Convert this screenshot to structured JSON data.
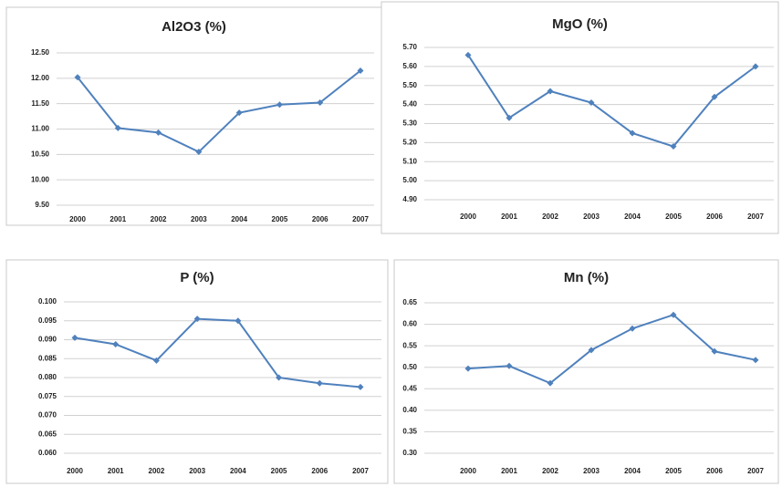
{
  "chart_data": [
    {
      "type": "line",
      "title": "Al2O3 (%)",
      "categories": [
        "2000",
        "2001",
        "2002",
        "2003",
        "2004",
        "2005",
        "2006",
        "2007"
      ],
      "series": [
        {
          "color": "#4f81bd",
          "values": [
            12.02,
            11.02,
            10.93,
            10.55,
            11.32,
            11.48,
            11.52,
            12.15
          ]
        }
      ],
      "ylim": [
        9.5,
        12.5
      ],
      "yticks": [
        {
          "value": 9.5,
          "label": "9.50"
        },
        {
          "value": 10,
          "label": "10.00"
        },
        {
          "value": 10.5,
          "label": "10.50"
        },
        {
          "value": 11,
          "label": "11.00"
        },
        {
          "value": 11.5,
          "label": "11.50"
        },
        {
          "value": 12,
          "label": "12.00"
        },
        {
          "value": 12.5,
          "label": "12.50"
        }
      ],
      "grid": true
    },
    {
      "type": "line",
      "title": "MgO (%)",
      "categories": [
        "2000",
        "2001",
        "2002",
        "2003",
        "2004",
        "2005",
        "2006",
        "2007"
      ],
      "series": [
        {
          "color": "#4f81bd",
          "values": [
            5.66,
            5.33,
            5.47,
            5.41,
            5.25,
            5.18,
            5.44,
            5.6
          ]
        }
      ],
      "ylim": [
        4.9,
        5.7
      ],
      "yticks": [
        {
          "value": 4.9,
          "label": "4.90"
        },
        {
          "value": 5,
          "label": "5.00"
        },
        {
          "value": 5.1,
          "label": "5.10"
        },
        {
          "value": 5.2,
          "label": "5.20"
        },
        {
          "value": 5.3,
          "label": "5.30"
        },
        {
          "value": 5.4,
          "label": "5.40"
        },
        {
          "value": 5.5,
          "label": "5.50"
        },
        {
          "value": 5.6,
          "label": "5.60"
        },
        {
          "value": 5.7,
          "label": "5.70"
        }
      ],
      "grid": true
    },
    {
      "type": "line",
      "title": "P (%)",
      "categories": [
        "2000",
        "2001",
        "2002",
        "2003",
        "2004",
        "2005",
        "2006",
        "2007"
      ],
      "series": [
        {
          "color": "#4f81bd",
          "values": [
            0.0905,
            0.0888,
            0.0845,
            0.0955,
            0.095,
            0.08,
            0.0785,
            0.0775
          ]
        }
      ],
      "ylim": [
        0.06,
        0.1
      ],
      "yticks": [
        {
          "value": 0.06,
          "label": "0.060"
        },
        {
          "value": 0.065,
          "label": "0.065"
        },
        {
          "value": 0.07,
          "label": "0.070"
        },
        {
          "value": 0.075,
          "label": "0.075"
        },
        {
          "value": 0.08,
          "label": "0.080"
        },
        {
          "value": 0.085,
          "label": "0.085"
        },
        {
          "value": 0.09,
          "label": "0.090"
        },
        {
          "value": 0.095,
          "label": "0.095"
        },
        {
          "value": 0.1,
          "label": "0.100"
        }
      ],
      "grid": true
    },
    {
      "type": "line",
      "title": "Mn (%)",
      "categories": [
        "2000",
        "2001",
        "2002",
        "2003",
        "2004",
        "2005",
        "2006",
        "2007"
      ],
      "series": [
        {
          "color": "#4f81bd",
          "values": [
            0.497,
            0.503,
            0.463,
            0.54,
            0.59,
            0.622,
            0.537,
            0.517
          ]
        }
      ],
      "ylim": [
        0.3,
        0.65
      ],
      "yticks": [
        {
          "value": 0.3,
          "label": "0.30"
        },
        {
          "value": 0.35,
          "label": "0.35"
        },
        {
          "value": 0.4,
          "label": "0.40"
        },
        {
          "value": 0.45,
          "label": "0.45"
        },
        {
          "value": 0.5,
          "label": "0.50"
        },
        {
          "value": 0.55,
          "label": "0.55"
        },
        {
          "value": 0.6,
          "label": "0.60"
        },
        {
          "value": 0.65,
          "label": "0.65"
        }
      ],
      "grid": true
    }
  ]
}
